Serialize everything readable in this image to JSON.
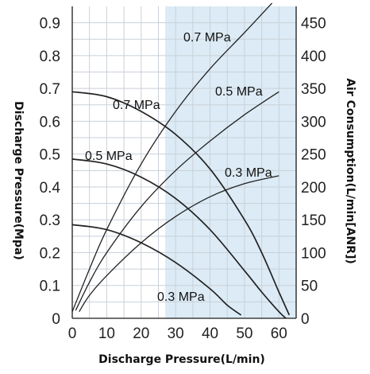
{
  "chart_data": {
    "type": "line",
    "xlabel": "Discharge Pressure(L/min)",
    "ylabel": "Discharge Pressure(Mpa)",
    "y2label": "Air Consumption(L/min[ANR])",
    "xlim": [
      0,
      65
    ],
    "ylim": [
      0,
      0.95
    ],
    "y2lim": [
      0,
      475
    ],
    "x_ticks": [
      "0",
      "10",
      "20",
      "30",
      "40",
      "50",
      "60"
    ],
    "y_ticks": [
      "0",
      "0.1",
      "0.2",
      "0.3",
      "0.4",
      "0.5",
      "0.6",
      "0.7",
      "0.8",
      "0.9"
    ],
    "y2_ticks": [
      "0",
      "50",
      "100",
      "150",
      "200",
      "250",
      "300",
      "350",
      "400",
      "450"
    ],
    "highlight_region": {
      "x": [
        27,
        65
      ],
      "color": "#dcebf5"
    },
    "grid": true,
    "grid_color": "#c9d1d9",
    "line_color": "#222222",
    "series": [
      {
        "name": "0.7 MPa",
        "axis": "pressure",
        "x": [
          0,
          10,
          20,
          30,
          40,
          50,
          55,
          60,
          63
        ],
        "y": [
          0.69,
          0.675,
          0.63,
          0.56,
          0.455,
          0.3,
          0.2,
          0.08,
          0.01
        ]
      },
      {
        "name": "0.5 MPa",
        "axis": "pressure",
        "x": [
          0,
          10,
          20,
          30,
          40,
          50,
          55,
          60,
          62
        ],
        "y": [
          0.485,
          0.47,
          0.43,
          0.365,
          0.27,
          0.145,
          0.08,
          0.02,
          0.0
        ]
      },
      {
        "name": "0.3 MPa",
        "axis": "pressure",
        "x": [
          0,
          10,
          20,
          30,
          40,
          45,
          49
        ],
        "y": [
          0.285,
          0.27,
          0.23,
          0.17,
          0.09,
          0.04,
          0.01
        ]
      },
      {
        "name": "0.7 MPa",
        "axis": "air",
        "x": [
          0,
          5,
          10,
          20,
          30,
          40,
          50,
          58
        ],
        "y": [
          10,
          75,
          135,
          235,
          315,
          380,
          435,
          480
        ]
      },
      {
        "name": "0.5 MPa",
        "axis": "air",
        "x": [
          1,
          5,
          10,
          20,
          30,
          40,
          50,
          60
        ],
        "y": [
          12,
          55,
          100,
          170,
          225,
          270,
          310,
          345
        ]
      },
      {
        "name": "0.3 MPa",
        "axis": "air",
        "x": [
          2,
          5,
          10,
          20,
          30,
          40,
          50,
          60
        ],
        "y": [
          10,
          35,
          65,
          115,
          155,
          185,
          205,
          217
        ]
      }
    ]
  }
}
